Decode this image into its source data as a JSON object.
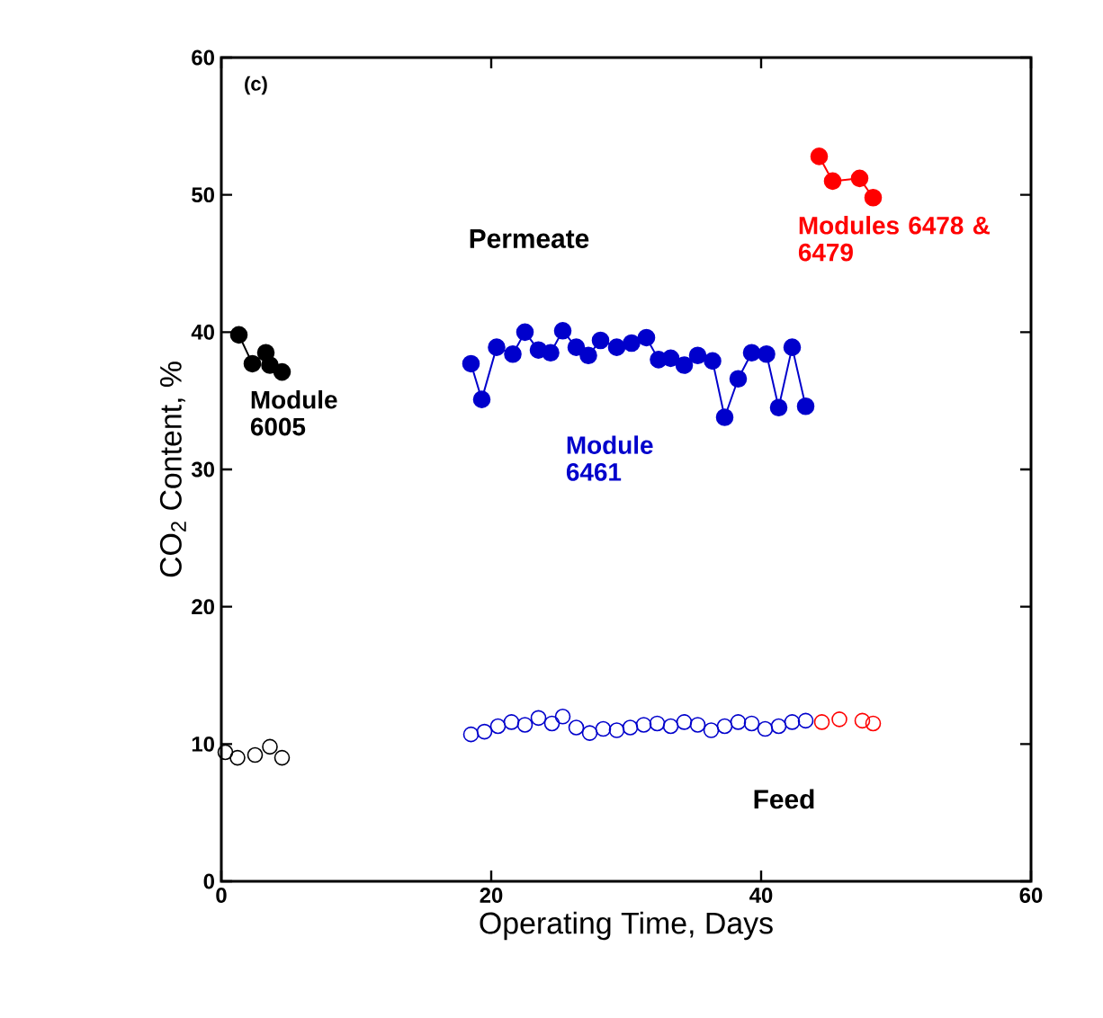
{
  "chart_data": {
    "type": "line",
    "xlabel": "Operating Time, Days",
    "ylabel": "CO$_{2}$ Content, %",
    "xlim": [
      0,
      60
    ],
    "ylim": [
      0,
      60
    ],
    "xticks": [
      0,
      20,
      40,
      60
    ],
    "yticks": [
      0,
      10,
      20,
      30,
      40,
      50,
      60
    ],
    "marker": "circle",
    "grid": false,
    "legend": false,
    "annotations": [
      "(c)",
      "Permeate",
      "Feed"
    ],
    "series": [
      {
        "name": "Module 6005",
        "color": "#000000",
        "x": [
          1.3,
          2.3,
          3.3,
          3.6,
          4.5
        ],
        "values": [
          39.8,
          37.7,
          38.5,
          37.6,
          37.1
        ]
      },
      {
        "name": "Module 6461",
        "color": "#0000cc",
        "x": [
          18.5,
          19.3,
          20.4,
          21.6,
          22.5,
          23.5,
          24.4,
          25.3,
          26.3,
          27.2,
          28.1,
          29.3,
          30.4,
          31.5,
          32.4,
          33.3,
          34.3,
          35.3,
          36.4,
          37.3,
          38.3,
          39.3,
          40.4,
          41.3,
          42.3,
          43.3
        ],
        "values": [
          37.7,
          35.1,
          38.9,
          38.4,
          40.0,
          38.7,
          38.5,
          40.1,
          38.9,
          38.3,
          39.4,
          38.9,
          39.2,
          39.6,
          38.0,
          38.1,
          37.6,
          38.3,
          37.9,
          33.8,
          36.6,
          38.5,
          38.4,
          34.5,
          38.9,
          34.6
        ]
      },
      {
        "name": "Modules 6478 & 6479",
        "color": "#ff0000",
        "x": [
          44.3,
          45.3,
          47.3,
          48.3
        ],
        "values": [
          52.8,
          51.0,
          51.2,
          49.8
        ]
      },
      {
        "type": "scatter",
        "color": "#000000",
        "x": [
          0.3,
          1.2,
          2.5,
          3.6,
          4.5
        ],
        "values": [
          9.4,
          9.0,
          9.2,
          9.8,
          9.0
        ]
      },
      {
        "type": "scatter",
        "color": "#0000cc",
        "x": [
          18.5,
          19.5,
          20.5,
          21.5,
          22.5,
          23.5,
          24.5,
          25.3,
          26.3,
          27.3,
          28.3,
          29.3,
          30.3,
          31.3,
          32.3,
          33.3,
          34.3,
          35.3,
          36.3,
          37.3,
          38.3,
          39.3,
          40.3,
          41.3,
          42.3,
          43.3
        ],
        "values": [
          10.7,
          10.9,
          11.3,
          11.6,
          11.4,
          11.9,
          11.5,
          12.0,
          11.2,
          10.8,
          11.1,
          11.0,
          11.2,
          11.4,
          11.5,
          11.3,
          11.6,
          11.4,
          11.0,
          11.3,
          11.6,
          11.5,
          11.1,
          11.3,
          11.6,
          11.7
        ]
      },
      {
        "type": "scatter",
        "color": "#ff0000",
        "x": [
          44.5,
          45.8,
          47.5,
          48.3
        ],
        "values": [
          11.6,
          11.8,
          11.7,
          11.5
        ]
      }
    ]
  }
}
